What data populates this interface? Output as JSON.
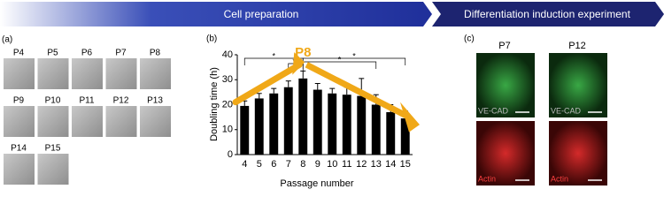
{
  "banner": {
    "left": "Cell preparation",
    "right": "Differentiation induction experiment"
  },
  "panel_a": {
    "label": "(a)",
    "thumbnails": [
      "P4",
      "P5",
      "P6",
      "P7",
      "P8",
      "P9",
      "P10",
      "P11",
      "P12",
      "P13",
      "P14",
      "P15"
    ]
  },
  "chart_data": {
    "type": "bar",
    "panel_label": "(b)",
    "y_label": "Doubling time (h)",
    "x_label": "Passage number",
    "categories": [
      "4",
      "5",
      "6",
      "7",
      "8",
      "9",
      "10",
      "11",
      "12",
      "13",
      "14",
      "15"
    ],
    "values": [
      19.5,
      22.5,
      24.5,
      27,
      30.5,
      26,
      24.5,
      24,
      23.5,
      20,
      17,
      14.5
    ],
    "errors": [
      2,
      2,
      2,
      2.5,
      3,
      2.5,
      2,
      3,
      7,
      4,
      3,
      3
    ],
    "color": "#000000",
    "ylim": [
      0,
      40
    ],
    "yticks": [
      0,
      10,
      20,
      30,
      40
    ],
    "highlight": "P8",
    "significance": [
      "*",
      "**",
      "*",
      "*"
    ]
  },
  "panel_c": {
    "label": "(c)",
    "columns": [
      "P7",
      "P12"
    ],
    "stains": [
      "VE-CAD",
      "Actin"
    ]
  }
}
